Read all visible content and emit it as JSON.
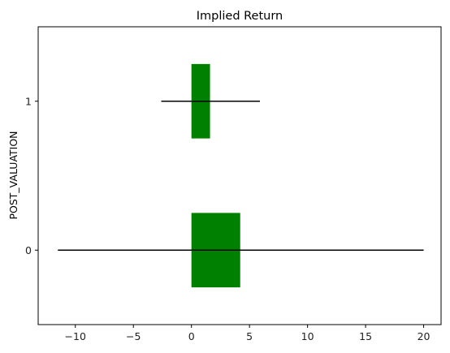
{
  "chart_data": {
    "type": "bar",
    "orientation": "horizontal",
    "title": "Implied Return",
    "xlabel": "",
    "ylabel": "POST_VALUATION",
    "xlim": [
      -13.2,
      21.5
    ],
    "ylim": [
      -0.5,
      1.5
    ],
    "x_ticks": [
      -10,
      -5,
      0,
      5,
      10,
      15,
      20
    ],
    "x_tick_labels": [
      "−10",
      "−5",
      "0",
      "5",
      "10",
      "15",
      "20"
    ],
    "y_ticks": [
      0,
      1
    ],
    "y_tick_labels": [
      "0",
      "1"
    ],
    "grid": false,
    "legend": "none",
    "bar_color": "#008000",
    "errorbar_color": "#000000",
    "categories": [
      "0",
      "1"
    ],
    "values": [
      4.2,
      1.6
    ],
    "error_low": [
      -11.5,
      -2.6
    ],
    "error_high": [
      20.0,
      5.9
    ]
  }
}
